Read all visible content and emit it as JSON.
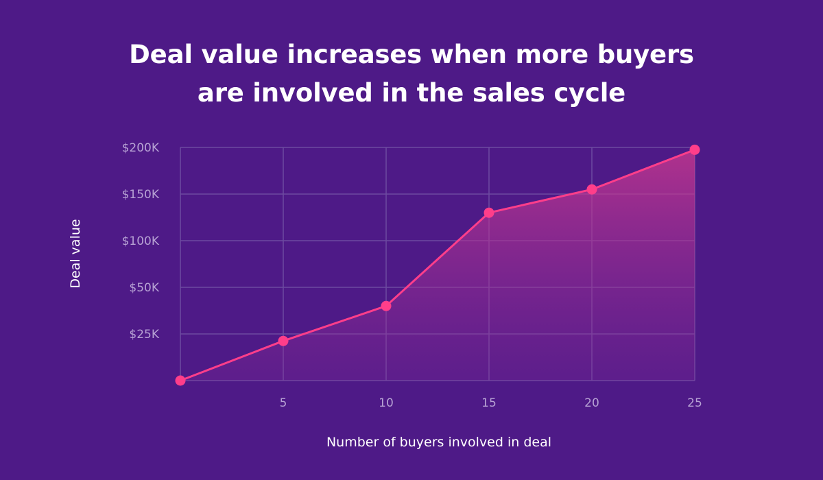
{
  "title_lines": [
    "Deal value increases when more buyers",
    "are involved in the sales cycle"
  ],
  "colors": {
    "background": "#4e1a87",
    "grid": "#6d4aa0",
    "line": "#ff3e8a",
    "tick_text": "#b7a2d4",
    "axis_text": "#ffffff"
  },
  "chart_data": {
    "type": "area",
    "x": [
      0,
      5,
      10,
      15,
      20,
      25
    ],
    "y_positions": [
      0,
      1,
      2,
      3,
      4,
      5
    ],
    "values_display": [
      "",
      "$25K",
      "$50K",
      "$100K",
      "$150K",
      "$200K"
    ],
    "series": [
      {
        "values_index": [
          0.0,
          0.85,
          1.6,
          3.6,
          4.1,
          4.95
        ]
      }
    ],
    "x_ticks": [
      "5",
      "10",
      "15",
      "20",
      "25"
    ],
    "y_ticks": [
      "$25K",
      "$50K",
      "$100K",
      "$150K",
      "$200K"
    ],
    "xlabel": "Number of buyers involved in deal",
    "ylabel": "Deal value",
    "xlim": [
      0,
      25
    ],
    "grid": true,
    "legend": "none"
  }
}
